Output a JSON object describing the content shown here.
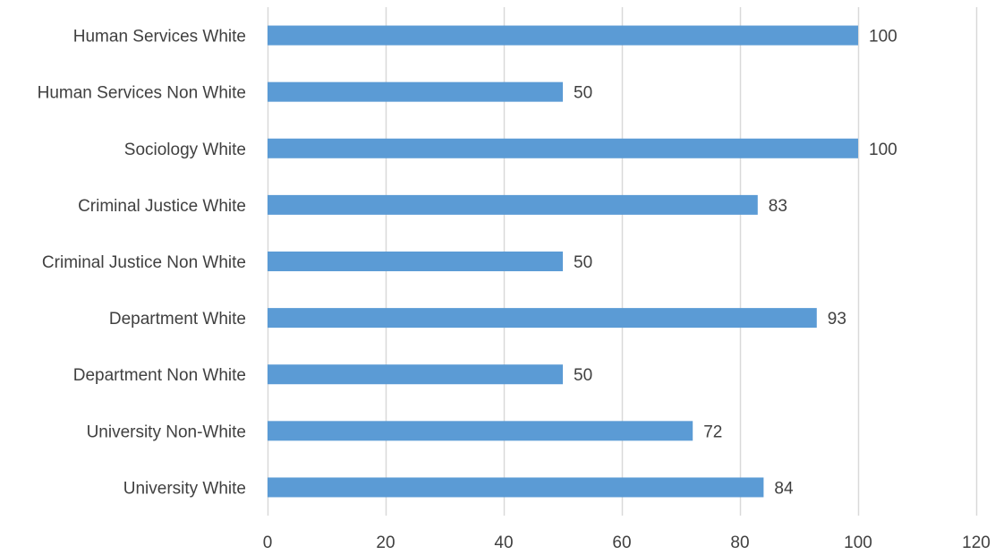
{
  "chart_data": {
    "type": "bar",
    "orientation": "horizontal",
    "categories": [
      "Human Services White",
      "Human Services Non White",
      "Sociology White",
      "Criminal Justice White",
      "Criminal Justice Non White",
      "Department White",
      "Department Non White",
      "University Non-White",
      "University White"
    ],
    "values": [
      100,
      50,
      100,
      83,
      50,
      93,
      50,
      72,
      84
    ],
    "data_labels": [
      "100",
      "50",
      "100",
      "83",
      "50",
      "93",
      "50",
      "72",
      "84"
    ],
    "xlim": [
      0,
      120
    ],
    "x_ticks": [
      0,
      20,
      40,
      60,
      80,
      100,
      120
    ],
    "x_tick_labels": [
      "0",
      "20",
      "40",
      "60",
      "80",
      "100",
      "120"
    ],
    "grid": "vertical",
    "legend": "none",
    "bar_color": "#5B9BD5",
    "gridline_color": "#D9D9D9",
    "text_color": "#404040"
  }
}
